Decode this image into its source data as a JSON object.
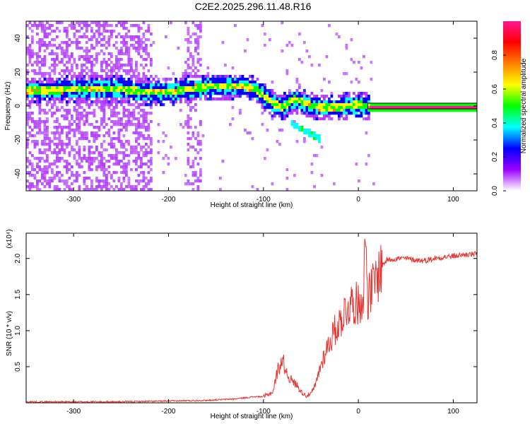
{
  "title": "C2E2.2025.296.11.48.R16",
  "chart_data": [
    {
      "type": "heatmap",
      "xlabel": "Height of straight line (km)",
      "ylabel": "Frequency (Hz)",
      "xlim": [
        -350,
        125
      ],
      "ylim": [
        -50,
        50
      ],
      "xticks": [
        -300,
        -200,
        -100,
        0,
        100
      ],
      "yticks": [
        -40,
        -20,
        0,
        20,
        40
      ],
      "colorbar": {
        "label": "Normalized spectral amplitude",
        "range": [
          0,
          1
        ],
        "ticks": [
          "0.0",
          "0.2",
          "0.4",
          "0.6",
          "0.8"
        ],
        "colors": [
          "#ffffff",
          "#9a00ff",
          "#0000ff",
          "#00ffff",
          "#00ff00",
          "#ffff00",
          "#ff8000",
          "#ff0000",
          "#ff1493"
        ]
      },
      "ridge": {
        "x": [
          -345,
          -320,
          -300,
          -280,
          -260,
          -240,
          -220,
          -200,
          -180,
          -160,
          -140,
          -120,
          -110,
          -100,
          -90,
          -80,
          -70,
          -60,
          -50,
          -40,
          -30,
          -20,
          -10,
          0,
          10,
          20,
          125
        ],
        "y": [
          10,
          10,
          11,
          11,
          11,
          10,
          9,
          9,
          11,
          12,
          12,
          12,
          11,
          6,
          2,
          0,
          5,
          3,
          1,
          0,
          0,
          0,
          1,
          2,
          0,
          0,
          0
        ]
      },
      "side_branch": {
        "x": [
          -70,
          -60,
          -50,
          -45
        ],
        "y": [
          -10,
          -12,
          -14,
          -18
        ]
      }
    },
    {
      "type": "line",
      "xlabel": "Height of straight line (km)",
      "ylabel": "SNR (10 * v/v)",
      "y_multiplier": "(x10⁴)",
      "xlim": [
        -350,
        125
      ],
      "ylim": [
        0,
        2.35
      ],
      "xticks": [
        -300,
        -200,
        -100,
        0,
        100
      ],
      "yticks": [
        0.5,
        1.0,
        1.5,
        2.0
      ],
      "color": "#e8322e",
      "x": [
        -350,
        -300,
        -250,
        -200,
        -160,
        -130,
        -110,
        -100,
        -90,
        -85,
        -80,
        -75,
        -70,
        -65,
        -60,
        -55,
        -50,
        -45,
        -40,
        -35,
        -30,
        -25,
        -20,
        -15,
        -10,
        -5,
        0,
        5,
        8,
        10,
        15,
        20,
        25,
        30,
        40,
        50,
        60,
        70,
        80,
        90,
        100,
        110,
        125
      ],
      "y": [
        0.01,
        0.01,
        0.01,
        0.02,
        0.03,
        0.05,
        0.08,
        0.08,
        0.15,
        0.45,
        0.6,
        0.4,
        0.3,
        0.25,
        0.15,
        0.1,
        0.12,
        0.25,
        0.5,
        0.7,
        0.85,
        1.0,
        1.1,
        1.25,
        1.35,
        1.4,
        1.35,
        1.5,
        2.3,
        1.45,
        1.6,
        1.75,
        1.9,
        1.98,
        2.0,
        2.0,
        1.98,
        1.97,
        2.0,
        2.02,
        2.03,
        2.05,
        2.06
      ]
    }
  ]
}
